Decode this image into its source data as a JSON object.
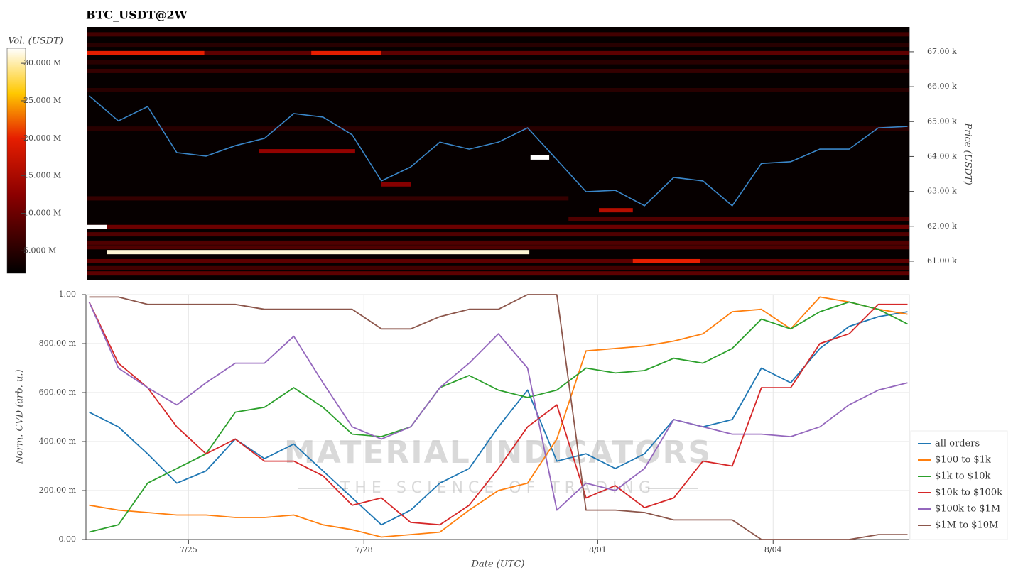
{
  "chart_data": [
    {
      "type": "heatmap",
      "title": "BTC_USDT@2W",
      "ylabel": "Price (USDT)",
      "x": [
        23.3,
        23.8,
        24.3,
        24.8,
        25.3,
        25.8,
        26.3,
        26.8,
        27.3,
        27.8,
        28.3,
        28.8,
        29.3,
        29.8,
        30.3,
        30.8,
        31.3,
        31.8,
        32.3,
        32.8,
        33.3,
        33.8,
        34.3,
        34.8,
        35.3,
        35.8,
        36.3,
        36.8,
        37.3
      ],
      "values": [
        65740,
        65020,
        65430,
        64110,
        64010,
        64310,
        64520,
        65230,
        65130,
        64620,
        63300,
        63700,
        64410,
        64210,
        64410,
        64820,
        63910,
        62990,
        63030,
        62590,
        63400,
        63300,
        62590,
        63800,
        63850,
        64210,
        64210,
        64820,
        64860
      ],
      "color": "#3a86c8",
      "xlim": [
        23.27,
        37.33
      ],
      "ylim": [
        60450,
        67710
      ],
      "yticks": [
        {
          "value": 61000,
          "label": "61.00 k"
        },
        {
          "value": 62000,
          "label": "62.00 k"
        },
        {
          "value": 63000,
          "label": "63.00 k"
        },
        {
          "value": 64000,
          "label": "64.00 k"
        },
        {
          "value": 65000,
          "label": "65.00 k"
        },
        {
          "value": 66000,
          "label": "66.00 k"
        },
        {
          "value": 67000,
          "label": "67.00 k"
        }
      ],
      "colorbar": {
        "label": "Vol. (USDT)",
        "lim": [
          2000000,
          32000000
        ],
        "ticks": [
          {
            "value": 5000000,
            "label": "5.000 M"
          },
          {
            "value": 10000000,
            "label": "10.000 M"
          },
          {
            "value": 15000000,
            "label": "15.000 M"
          },
          {
            "value": 20000000,
            "label": "20.000 M"
          },
          {
            "value": 25000000,
            "label": "25.000 M"
          },
          {
            "value": 30000000,
            "label": "30.000 M"
          }
        ]
      },
      "bands": [
        {
          "price": 67500,
          "from": 23.27,
          "to": 37.33,
          "volume": 7000000
        },
        {
          "price": 67200,
          "from": 23.27,
          "to": 37.33,
          "volume": 5000000
        },
        {
          "price": 66960,
          "from": 23.27,
          "to": 37.33,
          "volume": 9000000
        },
        {
          "price": 66960,
          "from": 23.27,
          "to": 25.27,
          "volume": 20000000
        },
        {
          "price": 66960,
          "from": 27.1,
          "to": 28.3,
          "volume": 20000000
        },
        {
          "price": 66700,
          "from": 23.27,
          "to": 37.33,
          "volume": 5000000
        },
        {
          "price": 66450,
          "from": 23.27,
          "to": 37.33,
          "volume": 6000000
        },
        {
          "price": 65900,
          "from": 23.27,
          "to": 37.33,
          "volume": 5000000
        },
        {
          "price": 64800,
          "from": 23.27,
          "to": 37.33,
          "volume": 5000000
        },
        {
          "price": 64150,
          "from": 26.2,
          "to": 27.85,
          "volume": 13000000
        },
        {
          "price": 63970,
          "from": 30.85,
          "to": 31.17,
          "volume": 32000000
        },
        {
          "price": 63200,
          "from": 28.3,
          "to": 28.8,
          "volume": 12000000
        },
        {
          "price": 62800,
          "from": 23.27,
          "to": 31.5,
          "volume": 6000000
        },
        {
          "price": 62460,
          "from": 32.02,
          "to": 32.6,
          "volume": 16000000
        },
        {
          "price": 62220,
          "from": 31.5,
          "to": 37.33,
          "volume": 8000000
        },
        {
          "price": 61980,
          "from": 23.27,
          "to": 37.33,
          "volume": 10000000
        },
        {
          "price": 61980,
          "from": 23.27,
          "to": 23.6,
          "volume": 32000000
        },
        {
          "price": 61770,
          "from": 23.27,
          "to": 37.33,
          "volume": 8000000
        },
        {
          "price": 61530,
          "from": 23.27,
          "to": 37.33,
          "volume": 8000000
        },
        {
          "price": 61400,
          "from": 23.27,
          "to": 37.33,
          "volume": 8000000
        },
        {
          "price": 61260,
          "from": 23.6,
          "to": 30.83,
          "volume": 31000000
        },
        {
          "price": 61000,
          "from": 23.27,
          "to": 37.33,
          "volume": 9000000
        },
        {
          "price": 61000,
          "from": 32.6,
          "to": 33.75,
          "volume": 20000000
        },
        {
          "price": 60800,
          "from": 23.27,
          "to": 37.33,
          "volume": 7000000
        },
        {
          "price": 60650,
          "from": 23.27,
          "to": 37.33,
          "volume": 9000000
        }
      ]
    },
    {
      "type": "line",
      "ylabel": "Norm. CVD (arb. u.)",
      "xlabel": "Date (UTC)",
      "x": [
        23.3,
        23.8,
        24.3,
        24.8,
        25.3,
        25.8,
        26.3,
        26.8,
        27.3,
        27.8,
        28.3,
        28.8,
        29.3,
        29.8,
        30.3,
        30.8,
        31.3,
        31.8,
        32.3,
        32.8,
        33.3,
        33.8,
        34.3,
        34.8,
        35.3,
        35.8,
        36.3,
        36.8,
        37.3
      ],
      "xlim": [
        23.27,
        37.33
      ],
      "xticks": [
        {
          "value": 25,
          "label": "7/25"
        },
        {
          "value": 28,
          "label": "7/28"
        },
        {
          "value": 32,
          "label": "8/01"
        },
        {
          "value": 35,
          "label": "8/04"
        }
      ],
      "ylim": [
        0,
        1
      ],
      "yticks": [
        {
          "value": 0,
          "label": "0.00"
        },
        {
          "value": 0.2,
          "label": "200.00 m"
        },
        {
          "value": 0.4,
          "label": "400.00 m"
        },
        {
          "value": 0.6,
          "label": "600.00 m"
        },
        {
          "value": 0.8,
          "label": "800.00 m"
        },
        {
          "value": 1,
          "label": "1.00"
        }
      ],
      "grid": true,
      "legend": "lower right",
      "watermark": [
        "MATERIAL INDICATORS",
        "THE SCIENCE OF TRADING"
      ],
      "series": [
        {
          "name": "all orders",
          "color": "#1f77b4",
          "values": [
            0.52,
            0.46,
            0.35,
            0.23,
            0.28,
            0.41,
            0.33,
            0.39,
            0.28,
            0.17,
            0.06,
            0.12,
            0.23,
            0.29,
            0.46,
            0.61,
            0.32,
            0.35,
            0.29,
            0.35,
            0.49,
            0.46,
            0.49,
            0.7,
            0.64,
            0.78,
            0.87,
            0.91,
            0.93
          ]
        },
        {
          "name": "$100 to $1k",
          "color": "#ff7f0e",
          "values": [
            0.14,
            0.12,
            0.11,
            0.1,
            0.1,
            0.09,
            0.09,
            0.1,
            0.06,
            0.04,
            0.01,
            0.02,
            0.03,
            0.12,
            0.2,
            0.23,
            0.41,
            0.77,
            0.78,
            0.79,
            0.81,
            0.84,
            0.93,
            0.94,
            0.86,
            0.99,
            0.97,
            0.94,
            0.92
          ]
        },
        {
          "name": "$1k to $10k",
          "color": "#2ca02c",
          "values": [
            0.03,
            0.06,
            0.23,
            0.29,
            0.35,
            0.52,
            0.54,
            0.62,
            0.54,
            0.43,
            0.42,
            0.46,
            0.62,
            0.67,
            0.61,
            0.58,
            0.61,
            0.7,
            0.68,
            0.69,
            0.74,
            0.72,
            0.78,
            0.9,
            0.86,
            0.93,
            0.97,
            0.94,
            0.88
          ]
        },
        {
          "name": "$10k to $100k",
          "color": "#d62728",
          "values": [
            0.97,
            0.72,
            0.62,
            0.46,
            0.35,
            0.41,
            0.32,
            0.32,
            0.26,
            0.14,
            0.17,
            0.07,
            0.06,
            0.14,
            0.29,
            0.46,
            0.55,
            0.17,
            0.22,
            0.13,
            0.17,
            0.32,
            0.3,
            0.62,
            0.62,
            0.8,
            0.84,
            0.96,
            0.96
          ]
        },
        {
          "name": "$100k to $1M",
          "color": "#9467bd",
          "values": [
            0.97,
            0.7,
            0.62,
            0.55,
            0.64,
            0.72,
            0.72,
            0.83,
            0.64,
            0.46,
            0.41,
            0.46,
            0.62,
            0.72,
            0.84,
            0.7,
            0.12,
            0.23,
            0.2,
            0.29,
            0.49,
            0.46,
            0.43,
            0.43,
            0.42,
            0.46,
            0.55,
            0.61,
            0.64
          ]
        },
        {
          "name": "$1M to $10M",
          "color": "#8c564b",
          "values": [
            0.99,
            0.99,
            0.96,
            0.96,
            0.96,
            0.96,
            0.94,
            0.94,
            0.94,
            0.94,
            0.86,
            0.86,
            0.91,
            0.94,
            0.94,
            1.0,
            1.0,
            0.12,
            0.12,
            0.11,
            0.08,
            0.08,
            0.08,
            0.0,
            0.0,
            0.0,
            0.0,
            0.02,
            0.02
          ]
        }
      ]
    }
  ]
}
